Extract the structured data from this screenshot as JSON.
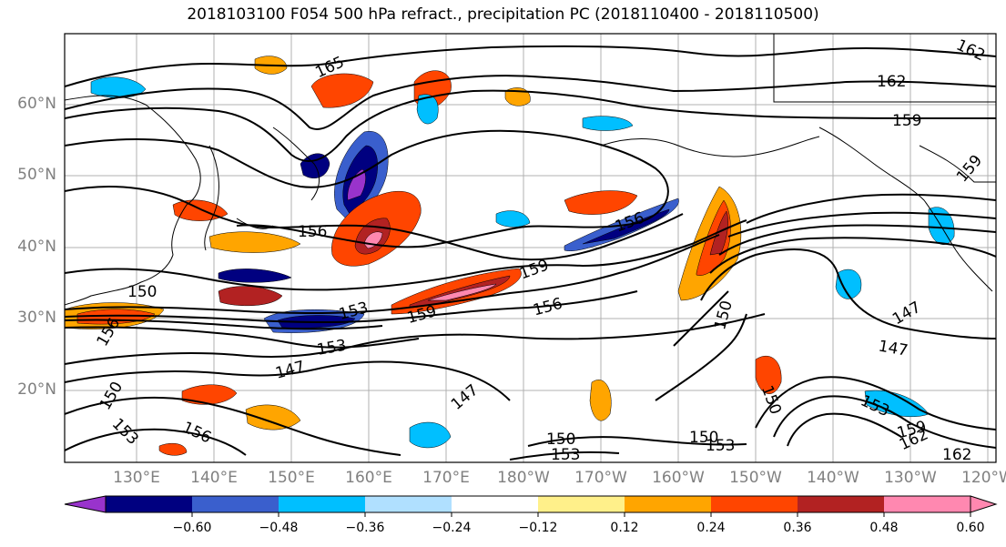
{
  "title": "2018103100 F054 500 hPa refract., precipitation PC (2018110400 - 2018110500)",
  "lat_labels": [
    "60°N",
    "50°N",
    "40°N",
    "30°N",
    "20°N"
  ],
  "lon_labels": [
    "130°E",
    "140°E",
    "150°E",
    "160°E",
    "170°E",
    "180°W",
    "170°W",
    "160°W",
    "150°W",
    "140°W",
    "130°W",
    "120°W"
  ],
  "contour_labels": [
    "165",
    "162",
    "159",
    "159",
    "156",
    "156",
    "156",
    "159",
    "150",
    "153",
    "159",
    "156",
    "150",
    "153",
    "147",
    "150",
    "147",
    "147",
    "153",
    "156",
    "150",
    "153",
    "150",
    "153",
    "150",
    "153",
    "159",
    "162",
    "162",
    "147",
    "162"
  ],
  "colorbar": {
    "colors": [
      "#9933cc",
      "#000080",
      "#3a5fcd",
      "#00bfff",
      "#b0e0ff",
      "#ffffff",
      "#fff08a",
      "#ffa500",
      "#ff4500",
      "#b22222",
      "#ff88b0",
      "#ff88b0"
    ],
    "tick_labels": [
      "−0.60",
      "−0.48",
      "−0.36",
      "−0.24",
      "−0.12",
      "0.12",
      "0.24",
      "0.36",
      "0.48",
      "0.60"
    ],
    "levels": [
      -0.6,
      -0.48,
      -0.36,
      -0.24,
      -0.12,
      0.12,
      0.24,
      0.36,
      0.48,
      0.6
    ]
  }
}
